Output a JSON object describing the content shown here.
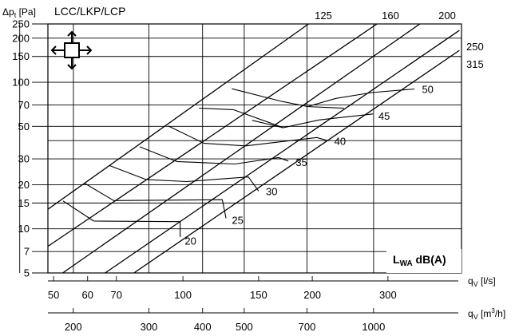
{
  "chart_data": {
    "type": "line",
    "title": "LCC/LKP/LCP",
    "ylabel": {
      "symbol": "Δp",
      "sub": "t",
      "unit": "[Pa]"
    },
    "x_axes": [
      {
        "symbol": "q",
        "sub": "V",
        "unit": "[l/s]",
        "ticks": [
          50,
          60,
          70,
          100,
          150,
          200,
          300
        ]
      },
      {
        "symbol": "q",
        "sub": "V",
        "unit_pre": "[m",
        "unit_sup": "3",
        "unit_post": "/h]",
        "ticks": [
          200,
          300,
          400,
          500,
          700,
          1000
        ]
      }
    ],
    "y_ticks": [
      5,
      7,
      10,
      15,
      20,
      30,
      50,
      70,
      100,
      150,
      200,
      250
    ],
    "y_extra_gridlines": [
      40
    ],
    "x_extra_gridlines_lps": [
      41.7,
      55.6,
      83.3,
      111.1,
      138.9,
      194.4,
      277.8
    ],
    "xlim_lps": [
      48.5,
      445
    ],
    "ylim_pa": [
      5,
      250
    ],
    "xscale": "log",
    "yscale": "log",
    "legend_label": {
      "main": "L",
      "sub": "WA",
      "post": " dB(A)"
    },
    "size_series": [
      {
        "label": "125",
        "points": [
          [
            48.5,
            13.6
          ],
          [
            196,
            250
          ]
        ]
      },
      {
        "label": "160",
        "points": [
          [
            48.5,
            7.6
          ],
          [
            283,
            250
          ]
        ]
      },
      {
        "label": "200",
        "points": [
          [
            52.5,
            5
          ],
          [
            356,
            250
          ]
        ]
      },
      {
        "label": "250",
        "points": [
          [
            65.9,
            5
          ],
          [
            440,
            226
          ]
        ]
      },
      {
        "label": "315",
        "points": [
          [
            76.9,
            5
          ],
          [
            440,
            165
          ]
        ]
      }
    ],
    "sound_contours": [
      {
        "label": "20",
        "points": [
          [
            62,
            11.3
          ],
          [
            98.5,
            11.2
          ],
          [
            98.5,
            8.8
          ]
        ]
      },
      {
        "label": "25",
        "points": [
          [
            52.6,
            15.5
          ],
          [
            62,
            11.3
          ]
        ]
      },
      {
        "label": "25b",
        "points": [
          [
            69,
            15.6
          ],
          [
            123.5,
            15.8
          ],
          [
            126,
            11.8
          ]
        ]
      },
      {
        "label": "30",
        "points": [
          [
            59,
            20.5
          ],
          [
            69,
            15.6
          ]
        ]
      },
      {
        "label": "30b",
        "points": [
          [
            82,
            21.7
          ],
          [
            102,
            21
          ],
          [
            142,
            22.6
          ],
          [
            150,
            18.1
          ]
        ]
      },
      {
        "label": "35",
        "points": [
          [
            67.5,
            27
          ],
          [
            82,
            21.7
          ]
        ]
      },
      {
        "label": "35b",
        "points": [
          [
            96.7,
            28.8
          ],
          [
            132,
            27.7
          ],
          [
            167,
            30.6
          ],
          [
            176,
            29
          ]
        ]
      },
      {
        "label": "40",
        "points": [
          [
            79.3,
            36.3
          ],
          [
            96.7,
            28.8
          ]
        ]
      },
      {
        "label": "40b",
        "points": [
          [
            112,
            38.3
          ],
          [
            140,
            36.8
          ],
          [
            205,
            42
          ],
          [
            217,
            40
          ]
        ]
      },
      {
        "label": "45",
        "points": [
          [
            92.4,
            50.4
          ],
          [
            112,
            38.3
          ]
        ]
      },
      {
        "label": "45b",
        "points": [
          [
            131,
            65
          ],
          [
            159,
            53
          ],
          [
            171,
            49
          ],
          [
            208,
            55.4
          ],
          [
            277,
            60.8
          ]
        ]
      },
      {
        "label": "45c",
        "points": [
          [
            109,
            66.6
          ],
          [
            131,
            65
          ]
        ]
      },
      {
        "label": "50",
        "points": [
          [
            145,
            55
          ],
          [
            171,
            49
          ]
        ]
      },
      {
        "label": "50b",
        "points": [
          [
            130,
            90.3
          ],
          [
            170,
            74
          ],
          [
            195,
            68.3
          ],
          [
            227,
            77.6
          ],
          [
            275,
            85
          ],
          [
            346,
            90
          ]
        ]
      },
      {
        "label": "50c",
        "points": [
          [
            194,
            68.3
          ],
          [
            237,
            66.5
          ]
        ]
      }
    ],
    "sound_labels": [
      {
        "text": "20",
        "at": [
          101,
          8.2
        ]
      },
      {
        "text": "25",
        "at": [
          130,
          11.4
        ]
      },
      {
        "text": "30",
        "at": [
          156,
          17.8
        ]
      },
      {
        "text": "35",
        "at": [
          183,
          28.3
        ]
      },
      {
        "text": "40",
        "at": [
          225,
          39.4
        ]
      },
      {
        "text": "45",
        "at": [
          285,
          58.5
        ]
      },
      {
        "text": "50",
        "at": [
          360,
          89
        ]
      }
    ],
    "grid": true
  }
}
